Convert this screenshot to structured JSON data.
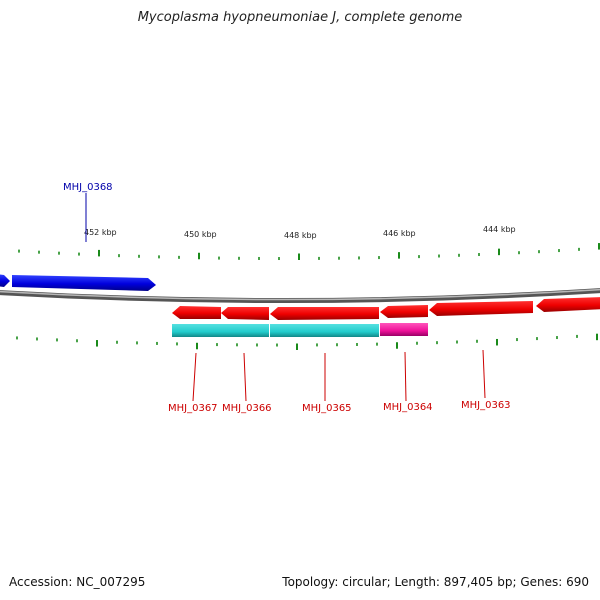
{
  "title": "Mycoplasma hyopneumoniae J, complete genome",
  "footer": {
    "accession": "Accession: NC_007295",
    "summary": "Topology: circular; Length: 897,405 bp; Genes: 690"
  },
  "scale": {
    "unit": "kbp",
    "major_ticks": [
      {
        "kbp": 452,
        "label": "452 kbp"
      },
      {
        "kbp": 450,
        "label": "450 kbp"
      },
      {
        "kbp": 448,
        "label": "448 kbp"
      },
      {
        "kbp": 446,
        "label": "446 kbp"
      },
      {
        "kbp": 444,
        "label": "444 kbp"
      }
    ]
  },
  "colors": {
    "forward_gene": "#0000dd",
    "reverse_gene": "#ee0000",
    "cds_band": "#22cccc",
    "cds_band_alt": "#ee1199",
    "tick": "#1a8a1a",
    "backbone": "#888888",
    "forward_label": "#0000aa",
    "reverse_label": "#cc0000"
  },
  "genes": [
    {
      "id": "MHJ_0368",
      "label": "MHJ_0368",
      "strand": "forward"
    },
    {
      "id": "MHJ_0367",
      "label": "MHJ_0367",
      "strand": "reverse"
    },
    {
      "id": "MHJ_0366",
      "label": "MHJ_0366",
      "strand": "reverse"
    },
    {
      "id": "MHJ_0365",
      "label": "MHJ_0365",
      "strand": "reverse"
    },
    {
      "id": "MHJ_0364",
      "label": "MHJ_0364",
      "strand": "reverse"
    },
    {
      "id": "MHJ_0363",
      "label": "MHJ_0363",
      "strand": "reverse"
    }
  ]
}
